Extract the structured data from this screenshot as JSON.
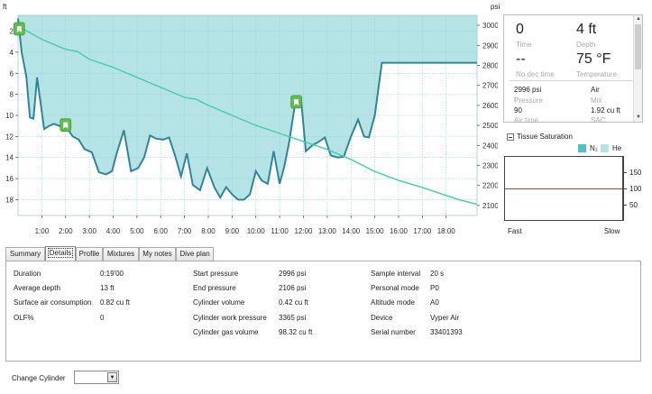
{
  "chart": {
    "left_unit": "ft",
    "right_unit": "psi",
    "depth_ticks": [
      "2",
      "4",
      "6",
      "8",
      "10",
      "12",
      "14",
      "16",
      "18"
    ],
    "pressure_ticks": [
      "3000",
      "2900",
      "2800",
      "2700",
      "2600",
      "2500",
      "2400",
      "2300",
      "2200",
      "2100"
    ],
    "time_ticks": [
      "1:00",
      "2:00",
      "3:00",
      "4:00",
      "5:00",
      "6:00",
      "7:00",
      "8:00",
      "9:00",
      "10:00",
      "11:00",
      "12:00",
      "13:00",
      "14:00",
      "15:00",
      "16:00",
      "17:00",
      "18:00"
    ],
    "colors": {
      "fill": "#b6e4e6",
      "profile": "#2e8799",
      "pressure": "#3fd1a4",
      "grid": "#8fcfd3",
      "marker": "#5cbf48"
    },
    "chart_data": {
      "type": "line",
      "xlabel": "",
      "ylabel": "ft",
      "y2label": "psi",
      "xlim_minutes": [
        0,
        19.3
      ],
      "ylim_depth_ft": [
        0.5,
        19.5
      ],
      "ylim_pressure_psi": [
        2050,
        3050
      ],
      "series": [
        {
          "axis": "depth",
          "x_minutes": [
            0,
            0.15,
            0.35,
            0.5,
            0.65,
            0.8,
            1.1,
            1.3,
            1.5,
            1.75,
            2.0,
            2.3,
            2.55,
            2.8,
            3.1,
            3.4,
            3.7,
            3.95,
            4.15,
            4.45,
            4.75,
            5.05,
            5.3,
            5.55,
            5.8,
            6.1,
            6.35,
            6.6,
            6.85,
            7.1,
            7.35,
            7.65,
            7.95,
            8.25,
            8.5,
            8.75,
            9.0,
            9.25,
            9.5,
            9.75,
            10.0,
            10.25,
            10.5,
            10.75,
            11.0,
            11.2,
            11.4,
            11.65,
            11.9,
            12.1,
            12.4,
            12.65,
            12.9,
            13.15,
            13.45,
            13.7,
            14.0,
            14.3,
            14.55,
            14.75,
            15.0,
            15.3,
            15.6,
            15.9,
            16.15,
            16.4,
            16.65,
            16.95,
            17.25,
            17.5,
            17.75,
            18.0,
            18.25,
            18.5,
            18.7,
            18.9,
            19.1,
            19.3
          ],
          "y_depth_ft": [
            0.8,
            4.0,
            6.3,
            10.2,
            10.3,
            6.4,
            11.3,
            11.0,
            10.8,
            11.0,
            11.0,
            12.0,
            12.3,
            13.2,
            13.5,
            15.4,
            15.6,
            15.3,
            13.6,
            11.4,
            15.3,
            15.0,
            14.0,
            11.9,
            12.2,
            12.3,
            12.1,
            13.8,
            15.8,
            13.6,
            16.6,
            17.1,
            15.0,
            16.8,
            17.8,
            16.8,
            17.5,
            18.0,
            18.0,
            17.5,
            15.3,
            16.2,
            16.5,
            13.4,
            16.5,
            14.8,
            12.5,
            8.9,
            8.4,
            13.4,
            12.8,
            12.5,
            12.1,
            13.8,
            14.0,
            13.9,
            12.0,
            10.4,
            12.0,
            12.1,
            10.0,
            5.0,
            5.0,
            5.0,
            5.0,
            5.0,
            5.0,
            5.0,
            5.0,
            5.0,
            5.0,
            5.0,
            5.0,
            5.0,
            5.0,
            5.0,
            5.0,
            5.0
          ]
        },
        {
          "axis": "pressure",
          "x_minutes": [
            0,
            1,
            2,
            2.5,
            3,
            4,
            5,
            6,
            7,
            7.5,
            8,
            9,
            10,
            11,
            12,
            13,
            14,
            15,
            16,
            17,
            18,
            18.5,
            19.3
          ],
          "y_pressure_psi": [
            2996,
            2930,
            2880,
            2870,
            2830,
            2790,
            2740,
            2690,
            2640,
            2630,
            2600,
            2550,
            2500,
            2460,
            2420,
            2380,
            2330,
            2270,
            2225,
            2190,
            2150,
            2130,
            2106
          ]
        }
      ],
      "events_minutes": [
        0.05,
        2.0,
        11.7
      ],
      "grid": true
    }
  },
  "info": {
    "time_value": "0",
    "time_label": "Time",
    "depth_value": "4 ft",
    "depth_label": "Depth",
    "nodec_value": "--",
    "nodec_label": "No dec time",
    "temp_value": "75 °F",
    "temp_label": "Temperature",
    "pressure_value": "2996 psi",
    "pressure_label": "Pressure",
    "mix_value": "Air",
    "mix_label": "Mix",
    "airtime_value": "90",
    "airtime_label": "Air time",
    "sac_value": "1.92 cu ft",
    "sac_label": "SAC"
  },
  "tissue": {
    "label": "Tissue Saturation",
    "legend_n2": "N₂",
    "legend_he": "He",
    "colors": {
      "n2": "#4ec3c6",
      "he": "#b6e4e6",
      "line": "#b33a2a"
    },
    "right_ticks": [
      "150",
      "100",
      "50"
    ],
    "fast_label": "Fast",
    "slow_label": "Slow"
  },
  "tabs": [
    "Summary",
    "Details",
    "Profile",
    "Mixtures",
    "My notes",
    "Dive plan"
  ],
  "active_tab": "Details",
  "details": {
    "col1": [
      {
        "label": "Duration",
        "value": "0:19'00"
      },
      {
        "label": "Average depth",
        "value": "13 ft"
      },
      {
        "label": "Surface air consumption",
        "value": "0.82 cu ft"
      },
      {
        "label": "OLF%",
        "value": "0"
      }
    ],
    "col2": [
      {
        "label": "Start pressure",
        "value": "2996 psi"
      },
      {
        "label": "End pressure",
        "value": "2106 psi"
      },
      {
        "label": "Cylinder volume",
        "value": "0.42 cu ft"
      },
      {
        "label": "Cylinder work pressure",
        "value": "3365 psi"
      },
      {
        "label": "Cylinder gas volume",
        "value": "98.32 cu ft"
      }
    ],
    "col3": [
      {
        "label": "Sample interval",
        "value": "20 s"
      },
      {
        "label": "Personal mode",
        "value": "P0"
      },
      {
        "label": "Altitude mode",
        "value": "A0"
      },
      {
        "label": "Device",
        "value": "Vyper Air"
      },
      {
        "label": "Serial number",
        "value": "33401393"
      }
    ]
  },
  "change_cylinder": {
    "label": "Change Cylinder",
    "value": ""
  }
}
